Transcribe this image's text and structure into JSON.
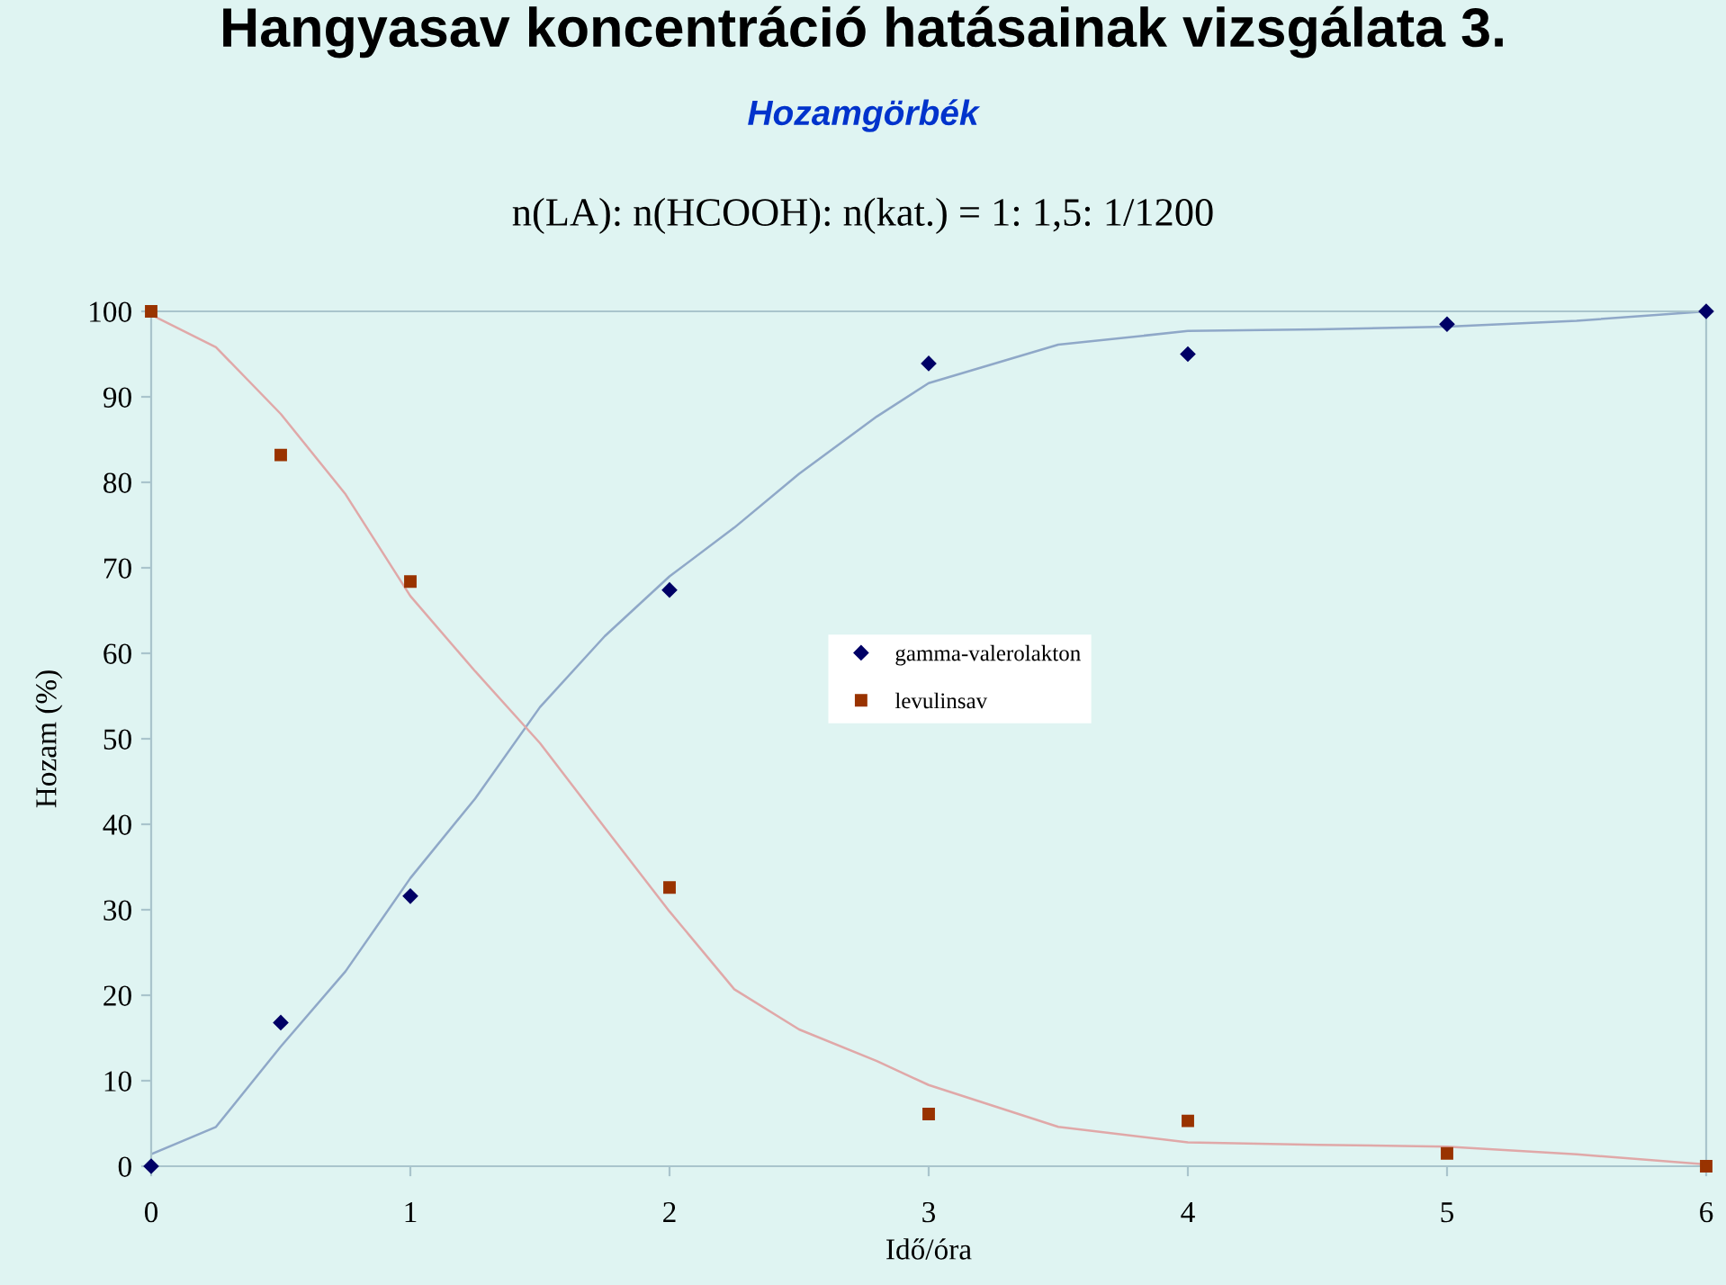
{
  "chart_data": {
    "type": "scatter",
    "title": "Hangyasav koncentráció hatásainak vizsgálata 3.",
    "subtitle": "Hozamgörbék",
    "annotations": [
      "n(LA): n(HCOOH): n(kat.) = 1: 1,5: 1/1200"
    ],
    "xlabel": "Idő/óra",
    "ylabel": "Hozam (%)",
    "x": [
      0,
      0.5,
      1,
      2,
      3,
      4,
      5,
      6
    ],
    "series": [
      {
        "name": "gamma-valerolakton",
        "color": "#000066",
        "marker": "diamond",
        "values": [
          0,
          16.8,
          31.6,
          67.4,
          93.9,
          95,
          98.5,
          100
        ]
      },
      {
        "name": "levulinsav",
        "color": "#993300",
        "marker": "square",
        "values": [
          100,
          83.2,
          68.4,
          32.6,
          6.1,
          5.3,
          1.5,
          0
        ]
      },
      {
        "type": "line",
        "color": "#8fa8c8",
        "marker": "none",
        "x": [
          0,
          0.25,
          0.5,
          0.75,
          1,
          1.25,
          1.5,
          1.75,
          2,
          2.25,
          2.5,
          2.8,
          3,
          3.5,
          4,
          4.5,
          5,
          5.5,
          6
        ],
        "values": [
          1.4,
          4.6,
          14,
          22.8,
          33.7,
          43,
          53.7,
          62,
          69,
          74.7,
          81,
          87.7,
          91.6,
          96.1,
          97.7,
          97.9,
          98.2,
          98.9,
          100
        ]
      },
      {
        "type": "line",
        "color": "#e0a8a8",
        "marker": "none",
        "x": [
          0,
          0.25,
          0.5,
          0.75,
          1,
          1.25,
          1.5,
          1.75,
          2,
          2.25,
          2.5,
          2.8,
          3,
          3.5,
          4,
          4.5,
          5,
          5.5,
          6
        ],
        "values": [
          99.6,
          95.8,
          88,
          78.6,
          66.7,
          57.9,
          49.5,
          39.6,
          29.8,
          20.7,
          16,
          12.3,
          9.5,
          4.6,
          2.8,
          2.5,
          2.3,
          1.4,
          0.2
        ]
      }
    ],
    "xlim": [
      0,
      6
    ],
    "xticks": [
      0,
      1,
      2,
      3,
      4,
      5,
      6
    ],
    "ylim": [
      0,
      100
    ],
    "yticks": [
      0,
      10,
      20,
      30,
      40,
      50,
      60,
      70,
      80,
      90,
      100
    ],
    "grid": false,
    "legend": "center"
  }
}
